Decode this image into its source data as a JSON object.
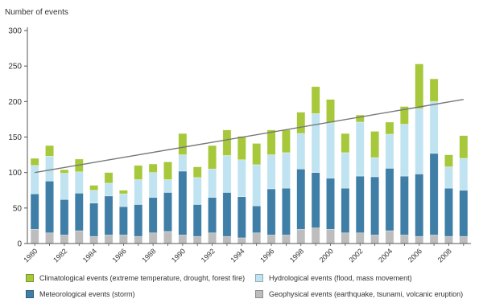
{
  "chart_data": {
    "type": "bar",
    "stacked": true,
    "title": "",
    "ylabel": "Number of events",
    "xlabel": "",
    "ylim": [
      0,
      300
    ],
    "yticks": [
      0,
      50,
      100,
      150,
      200,
      250,
      300
    ],
    "grid": false,
    "legend_position": "bottom",
    "categories": [
      "1980",
      "1981",
      "1982",
      "1983",
      "1984",
      "1985",
      "1986",
      "1987",
      "1988",
      "1989",
      "1990",
      "1991",
      "1992",
      "1993",
      "1994",
      "1995",
      "1996",
      "1997",
      "1998",
      "1999",
      "2000",
      "2001",
      "2002",
      "2003",
      "2004",
      "2005",
      "2006",
      "2007",
      "2008",
      "2009"
    ],
    "xtick_labels": [
      "1980",
      "",
      "1982",
      "",
      "1984",
      "",
      "1986",
      "",
      "1988",
      "",
      "1990",
      "",
      "1992",
      "",
      "1994",
      "",
      "1996",
      "",
      "1998",
      "",
      "2000",
      "",
      "2002",
      "",
      "2004",
      "",
      "2006",
      "",
      "2008",
      ""
    ],
    "series": [
      {
        "name": "Geophysical events (earthquake, tsunami, volcanic eruption)",
        "color": "#bdbdbd",
        "values": [
          20,
          15,
          12,
          18,
          10,
          12,
          12,
          10,
          15,
          17,
          12,
          10,
          15,
          10,
          8,
          15,
          12,
          12,
          20,
          22,
          20,
          15,
          15,
          12,
          18,
          12,
          10,
          12,
          10,
          10
        ]
      },
      {
        "name": "Meteorological events (storm)",
        "color": "#3f7ea6",
        "values": [
          50,
          73,
          50,
          53,
          47,
          55,
          40,
          45,
          50,
          55,
          90,
          45,
          50,
          62,
          58,
          38,
          65,
          66,
          85,
          78,
          72,
          63,
          80,
          82,
          88,
          83,
          88,
          115,
          68,
          65
        ]
      },
      {
        "name": "Hydrological events (flood, mass movement)",
        "color": "#bfe3f0",
        "values": [
          40,
          35,
          37,
          30,
          18,
          18,
          18,
          35,
          35,
          18,
          23,
          38,
          40,
          52,
          52,
          58,
          48,
          50,
          50,
          83,
          78,
          50,
          76,
          27,
          48,
          73,
          92,
          73,
          30,
          45
        ]
      },
      {
        "name": "Climatological events (extreme temperature, drought, forest fire)",
        "color": "#a6c83a",
        "values": [
          10,
          15,
          5,
          18,
          7,
          15,
          5,
          20,
          12,
          25,
          30,
          15,
          33,
          36,
          33,
          30,
          35,
          32,
          30,
          38,
          33,
          27,
          10,
          37,
          17,
          25,
          63,
          32,
          17,
          32
        ]
      }
    ],
    "trendline": {
      "from": {
        "x": "1980",
        "y": 100
      },
      "to": {
        "x": "2009",
        "y": 203
      },
      "color": "#777777"
    },
    "legend": [
      {
        "label": "Climatological events (extreme temperature, drought, forest fire)",
        "color": "#a6c83a"
      },
      {
        "label": "Hydrological events (flood, mass movement)",
        "color": "#bfe3f0"
      },
      {
        "label": "Meteorological events (storm)",
        "color": "#3f7ea6"
      },
      {
        "label": "Geophysical events (earthquake, tsunami, volcanic eruption)",
        "color": "#bdbdbd"
      }
    ]
  }
}
